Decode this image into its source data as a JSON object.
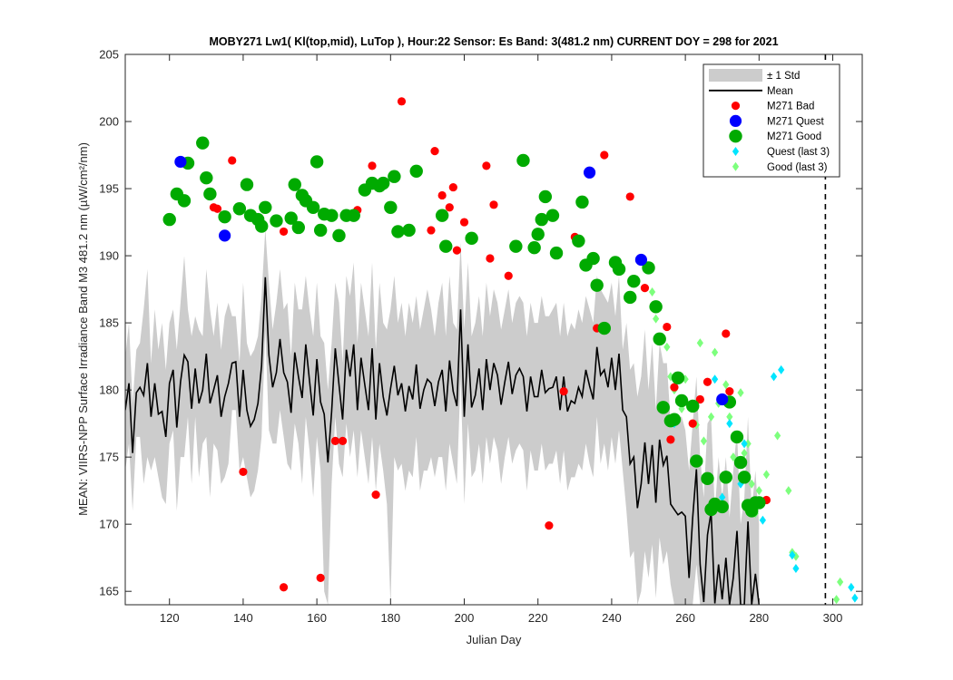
{
  "chart_data": {
    "type": "scatter",
    "title": "MOBY271   Lw1( Kl(top,mid), LuTop ),   Hour:22 Sensor: Es Band: 3(481.2 nm)   CURRENT DOY = 298 for 2021",
    "xlabel": "Julian Day",
    "ylabel": "MEAN: VIIRS-NPP Surface Irradiance Band M3 481.2 nm (µW/cm²/nm)",
    "xlim": [
      108,
      308
    ],
    "ylim": [
      164,
      205
    ],
    "xticks": [
      "120",
      "140",
      "160",
      "180",
      "200",
      "220",
      "240",
      "260",
      "280",
      "300"
    ],
    "yticks": [
      "165",
      "170",
      "175",
      "180",
      "185",
      "190",
      "195",
      "200",
      "205"
    ],
    "current_doy": 298,
    "legend_position": "top-right",
    "legend": [
      "± 1 Std",
      "Mean",
      "M271 Bad",
      "M271 Quest",
      "M271 Good",
      "Quest (last 3)",
      "Good (last 3)"
    ],
    "colors": {
      "std_band": "#cccccc",
      "mean": "#000000",
      "bad": "#ff0000",
      "quest": "#0000ff",
      "good": "#00aa00",
      "quest_last3": "#00e5ff",
      "good_last3": "#7dff7d"
    },
    "mean": {
      "x": [
        108,
        109,
        110,
        111,
        112,
        113,
        114,
        115,
        116,
        117,
        118,
        119,
        120,
        121,
        122,
        123,
        124,
        125,
        126,
        127,
        128,
        129,
        130,
        131,
        132,
        133,
        134,
        135,
        136,
        137,
        138,
        139,
        140,
        141,
        142,
        143,
        144,
        145,
        146,
        147,
        148,
        149,
        150,
        151,
        152,
        153,
        154,
        155,
        156,
        157,
        158,
        159,
        160,
        161,
        162,
        163,
        164,
        165,
        166,
        167,
        168,
        169,
        170,
        171,
        172,
        173,
        174,
        175,
        176,
        177,
        178,
        179,
        180,
        181,
        182,
        183,
        184,
        185,
        186,
        187,
        188,
        189,
        190,
        191,
        192,
        193,
        194,
        195,
        196,
        197,
        198,
        199,
        200,
        201,
        202,
        203,
        204,
        205,
        206,
        207,
        208,
        209,
        210,
        211,
        212,
        213,
        214,
        215,
        216,
        217,
        218,
        219,
        220,
        221,
        222,
        223,
        224,
        225,
        226,
        227,
        228,
        229,
        230,
        231,
        232,
        233,
        234,
        235,
        236,
        237,
        238,
        239,
        240,
        241,
        242,
        243,
        244,
        245,
        246,
        247,
        248,
        249,
        250,
        251,
        252,
        253,
        254,
        255,
        256,
        257,
        258,
        259,
        260,
        261,
        262,
        263,
        264,
        265,
        266,
        267,
        268,
        269,
        270,
        271,
        272,
        273,
        274,
        275,
        276,
        277,
        278,
        279,
        280
      ],
      "y": [
        178.5,
        180.5,
        175.3,
        179.8,
        180.2,
        179.6,
        182.0,
        178.0,
        180.5,
        178.2,
        178.4,
        176.5,
        180.5,
        181.5,
        177.2,
        180.6,
        182.6,
        182.1,
        178.6,
        181.6,
        179.0,
        180.0,
        182.7,
        179.0,
        180.0,
        181.1,
        178.0,
        179.5,
        180.5,
        182.0,
        182.1,
        178.0,
        181.5,
        178.5,
        177.3,
        177.8,
        179.0,
        181.8,
        188.4,
        182.6,
        180.2,
        181.3,
        183.8,
        181.3,
        180.6,
        178.3,
        182.8,
        181.0,
        179.4,
        183.4,
        180.7,
        178.1,
        182.3,
        179.1,
        178.2,
        174.6,
        178.4,
        183.1,
        180.4,
        177.8,
        183.0,
        181.0,
        183.4,
        178.5,
        182.4,
        180.4,
        178.5,
        183.1,
        177.8,
        182.0,
        179.5,
        178.1,
        180.1,
        181.8,
        179.6,
        180.5,
        178.4,
        180.3,
        179.3,
        181.9,
        178.6,
        180.0,
        180.8,
        180.5,
        178.8,
        180.6,
        181.5,
        178.4,
        182.2,
        179.9,
        178.8,
        186.0,
        178.0,
        183.4,
        178.7,
        179.6,
        181.6,
        178.5,
        182.3,
        180.0,
        182.0,
        181.1,
        178.9,
        180.6,
        182.1,
        179.7,
        181.1,
        181.6,
        181.0,
        178.4,
        181.0,
        179.5,
        179.5,
        181.5,
        179.8,
        180.1,
        180.2,
        181.0,
        178.5,
        181.0,
        178.4,
        179.2,
        179.0,
        180.2,
        179.5,
        181.5,
        180.3,
        179.3,
        183.2,
        181.1,
        181.5,
        180.2,
        182.4,
        180.0,
        182.7,
        178.5,
        178.0,
        174.5,
        175.0,
        171.2,
        173.0,
        176.1,
        173.0,
        175.9,
        171.6,
        176.3,
        174.4,
        175.1,
        171.5,
        171.1,
        170.7,
        170.9,
        170.6,
        166.0,
        170.5,
        174.1,
        167.0,
        164.2,
        169.2,
        170.9,
        164.1,
        167.0,
        164.4,
        167.5,
        164.0,
        166.0,
        169.5,
        164.0,
        164.0,
        170.2,
        164.0,
        166.3,
        164.0
      ],
      "upper": [
        182.5,
        185.0,
        179.0,
        183.0,
        183.5,
        186.0,
        189.0,
        182.0,
        186.0,
        183.0,
        185.0,
        181.5,
        185.0,
        186.0,
        183.0,
        186.5,
        190.0,
        186.0,
        184.0,
        185.5,
        184.5,
        184.0,
        189.0,
        186.0,
        184.0,
        186.5,
        183.0,
        185.5,
        186.5,
        185.5,
        185.5,
        182.0,
        188.0,
        183.5,
        182.5,
        183.0,
        184.0,
        187.0,
        192.0,
        188.0,
        184.5,
        186.5,
        189.0,
        186.0,
        186.5,
        182.5,
        188.0,
        186.0,
        186.0,
        188.5,
        186.0,
        184.0,
        188.0,
        184.0,
        183.5,
        180.0,
        183.5,
        188.0,
        186.5,
        182.0,
        188.5,
        187.0,
        189.5,
        183.5,
        188.0,
        186.0,
        184.0,
        189.5,
        183.0,
        188.0,
        185.0,
        184.5,
        186.0,
        188.5,
        185.0,
        186.5,
        184.0,
        186.5,
        185.0,
        187.0,
        184.5,
        186.0,
        187.5,
        186.0,
        184.0,
        186.5,
        188.0,
        184.0,
        188.5,
        185.0,
        184.5,
        191.0,
        184.5,
        189.5,
        184.0,
        185.0,
        187.0,
        184.0,
        188.0,
        185.5,
        187.5,
        186.5,
        184.5,
        186.0,
        187.5,
        185.0,
        186.5,
        187.0,
        186.5,
        184.0,
        186.5,
        185.0,
        185.0,
        187.0,
        185.5,
        185.5,
        186.0,
        186.5,
        184.0,
        186.5,
        184.0,
        185.0,
        184.5,
        186.0,
        185.0,
        187.0,
        186.0,
        185.0,
        188.5,
        187.5,
        187.0,
        186.5,
        188.0,
        185.5,
        188.5,
        183.0,
        185.0,
        181.5,
        182.0,
        179.5,
        181.0,
        184.5,
        180.0,
        183.5,
        178.5,
        183.5,
        182.0,
        182.0,
        177.5,
        178.0,
        178.0,
        178.0,
        177.0,
        174.0,
        177.5,
        181.0,
        175.0,
        172.0,
        177.5,
        178.0,
        171.0,
        175.0,
        172.0,
        175.0,
        170.5,
        174.0,
        177.0,
        170.0,
        172.0,
        178.0,
        171.0,
        174.0,
        170.0
      ],
      "lower": [
        174.0,
        176.0,
        171.0,
        176.5,
        176.5,
        173.0,
        175.0,
        174.0,
        175.0,
        173.5,
        172.0,
        171.5,
        176.0,
        177.0,
        171.0,
        175.0,
        175.0,
        178.0,
        173.0,
        178.0,
        173.5,
        176.0,
        176.5,
        172.0,
        176.0,
        175.5,
        173.0,
        173.5,
        174.5,
        178.5,
        178.5,
        174.0,
        175.0,
        173.5,
        172.0,
        172.5,
        174.0,
        176.5,
        184.5,
        177.0,
        176.0,
        176.0,
        178.5,
        176.5,
        174.5,
        174.0,
        177.5,
        176.0,
        173.0,
        178.0,
        175.5,
        172.0,
        176.5,
        174.0,
        165.0,
        164.0,
        173.0,
        178.0,
        174.5,
        173.5,
        177.5,
        175.0,
        177.0,
        173.5,
        177.0,
        175.0,
        173.0,
        176.5,
        172.5,
        176.0,
        174.0,
        171.5,
        164.0,
        175.0,
        174.0,
        174.5,
        172.5,
        174.0,
        173.5,
        176.5,
        172.5,
        174.0,
        174.0,
        175.0,
        173.5,
        175.0,
        175.0,
        172.5,
        176.0,
        174.5,
        173.0,
        181.0,
        171.5,
        177.5,
        173.5,
        174.0,
        176.0,
        173.0,
        176.5,
        174.5,
        176.5,
        175.5,
        173.0,
        175.0,
        176.5,
        174.5,
        175.5,
        176.0,
        175.5,
        172.5,
        175.5,
        174.0,
        174.0,
        176.0,
        174.0,
        174.5,
        174.5,
        175.5,
        173.0,
        175.5,
        172.5,
        173.5,
        173.5,
        174.5,
        174.0,
        176.0,
        174.5,
        173.5,
        178.0,
        174.5,
        176.0,
        174.0,
        176.5,
        174.5,
        177.0,
        174.0,
        171.0,
        167.5,
        168.0,
        164.0,
        165.0,
        168.0,
        166.0,
        168.5,
        164.5,
        169.0,
        167.0,
        168.0,
        165.5,
        164.0,
        164.0,
        164.0,
        164.0,
        164.0,
        164.0,
        167.0,
        164.0,
        164.0,
        164.0,
        164.0,
        164.0,
        164.0,
        164.0,
        164.0,
        164.0,
        164.0,
        164.0,
        164.0,
        164.0,
        164.0,
        164.0,
        164.0,
        164.0
      ]
    },
    "series": [
      {
        "name": "M271 Bad",
        "x": [
          132,
          137,
          133,
          140,
          151,
          151,
          161,
          165,
          167,
          171,
          175,
          176,
          183,
          191,
          192,
          194,
          196,
          197,
          198,
          200,
          206,
          207,
          208,
          212,
          223,
          227,
          230,
          236,
          238,
          245,
          249,
          255,
          256,
          257,
          262,
          264,
          266,
          271,
          272,
          282
        ],
        "y": [
          193.6,
          197.1,
          193.5,
          173.9,
          165.3,
          191.8,
          166.0,
          176.2,
          176.2,
          193.4,
          196.7,
          172.2,
          201.5,
          191.9,
          197.8,
          194.5,
          193.6,
          195.1,
          190.4,
          192.5,
          196.7,
          189.8,
          193.8,
          188.5,
          169.9,
          179.9,
          191.4,
          184.6,
          197.5,
          194.4,
          187.6,
          184.7,
          176.3,
          180.2,
          177.5,
          179.3,
          180.6,
          184.2,
          179.9,
          171.8
        ]
      },
      {
        "name": "M271 Quest",
        "x": [
          123,
          135,
          234,
          248,
          270
        ],
        "y": [
          197.0,
          191.5,
          196.2,
          189.7,
          179.3
        ]
      },
      {
        "name": "M271 Good",
        "x": [
          120,
          122,
          124,
          125,
          129,
          130,
          131,
          135,
          139,
          141,
          142,
          144,
          145,
          146,
          149,
          153,
          154,
          155,
          156,
          157,
          159,
          160,
          161,
          162,
          164,
          166,
          168,
          170,
          173,
          175,
          177,
          178,
          180,
          181,
          182,
          185,
          187,
          194,
          195,
          202,
          214,
          216,
          219,
          220,
          221,
          222,
          224,
          225,
          231,
          232,
          233,
          235,
          236,
          238,
          241,
          242,
          245,
          246,
          250,
          252,
          253,
          254,
          256,
          257,
          258,
          259,
          262,
          263,
          266,
          267,
          268,
          270,
          271,
          272,
          274,
          275,
          276,
          277,
          278,
          279,
          280
        ],
        "y": [
          192.7,
          194.6,
          194.1,
          196.9,
          198.4,
          195.8,
          194.6,
          192.9,
          193.5,
          195.3,
          193.0,
          192.7,
          192.2,
          193.6,
          192.6,
          192.8,
          195.3,
          192.1,
          194.5,
          194.1,
          193.6,
          197.0,
          191.9,
          193.1,
          193.0,
          191.5,
          193.0,
          193.0,
          194.9,
          195.4,
          195.2,
          195.4,
          193.6,
          195.9,
          191.8,
          191.9,
          196.3,
          193.0,
          190.7,
          191.3,
          190.7,
          197.1,
          190.6,
          191.6,
          192.7,
          194.4,
          193.0,
          190.2,
          191.1,
          194.0,
          189.3,
          189.8,
          187.8,
          184.6,
          189.5,
          189.0,
          186.9,
          188.1,
          189.1,
          186.2,
          183.8,
          178.7,
          177.7,
          177.8,
          180.9,
          179.2,
          178.8,
          174.7,
          173.4,
          171.1,
          171.5,
          171.3,
          173.5,
          179.1,
          176.5,
          174.6,
          173.5,
          171.4,
          171.0,
          171.6,
          171.6
        ]
      },
      {
        "name": "Quest (last 3)",
        "x": [
          257,
          268,
          270,
          272,
          275,
          276,
          281,
          284,
          286,
          289,
          290,
          305,
          306
        ],
        "y": [
          177.5,
          180.8,
          172.0,
          177.5,
          173.0,
          176.0,
          170.3,
          181.0,
          181.5,
          167.7,
          166.7,
          165.3,
          164.5
        ]
      },
      {
        "name": "Good (last 3)",
        "x": [
          251,
          252,
          253,
          255,
          256,
          257,
          259,
          260,
          263,
          264,
          265,
          267,
          268,
          269,
          271,
          272,
          273,
          275,
          276,
          277,
          278,
          279,
          280,
          282,
          285,
          288,
          289,
          290,
          301,
          302
        ],
        "y": [
          187.3,
          185.3,
          183.8,
          183.2,
          181.0,
          180.0,
          178.6,
          180.8,
          177.4,
          183.5,
          176.2,
          178.0,
          182.8,
          179.0,
          180.4,
          178.0,
          175.0,
          179.8,
          175.3,
          176.0,
          173.0,
          170.8,
          172.5,
          173.7,
          176.6,
          172.5,
          167.9,
          167.6,
          164.4,
          165.7
        ]
      }
    ]
  }
}
